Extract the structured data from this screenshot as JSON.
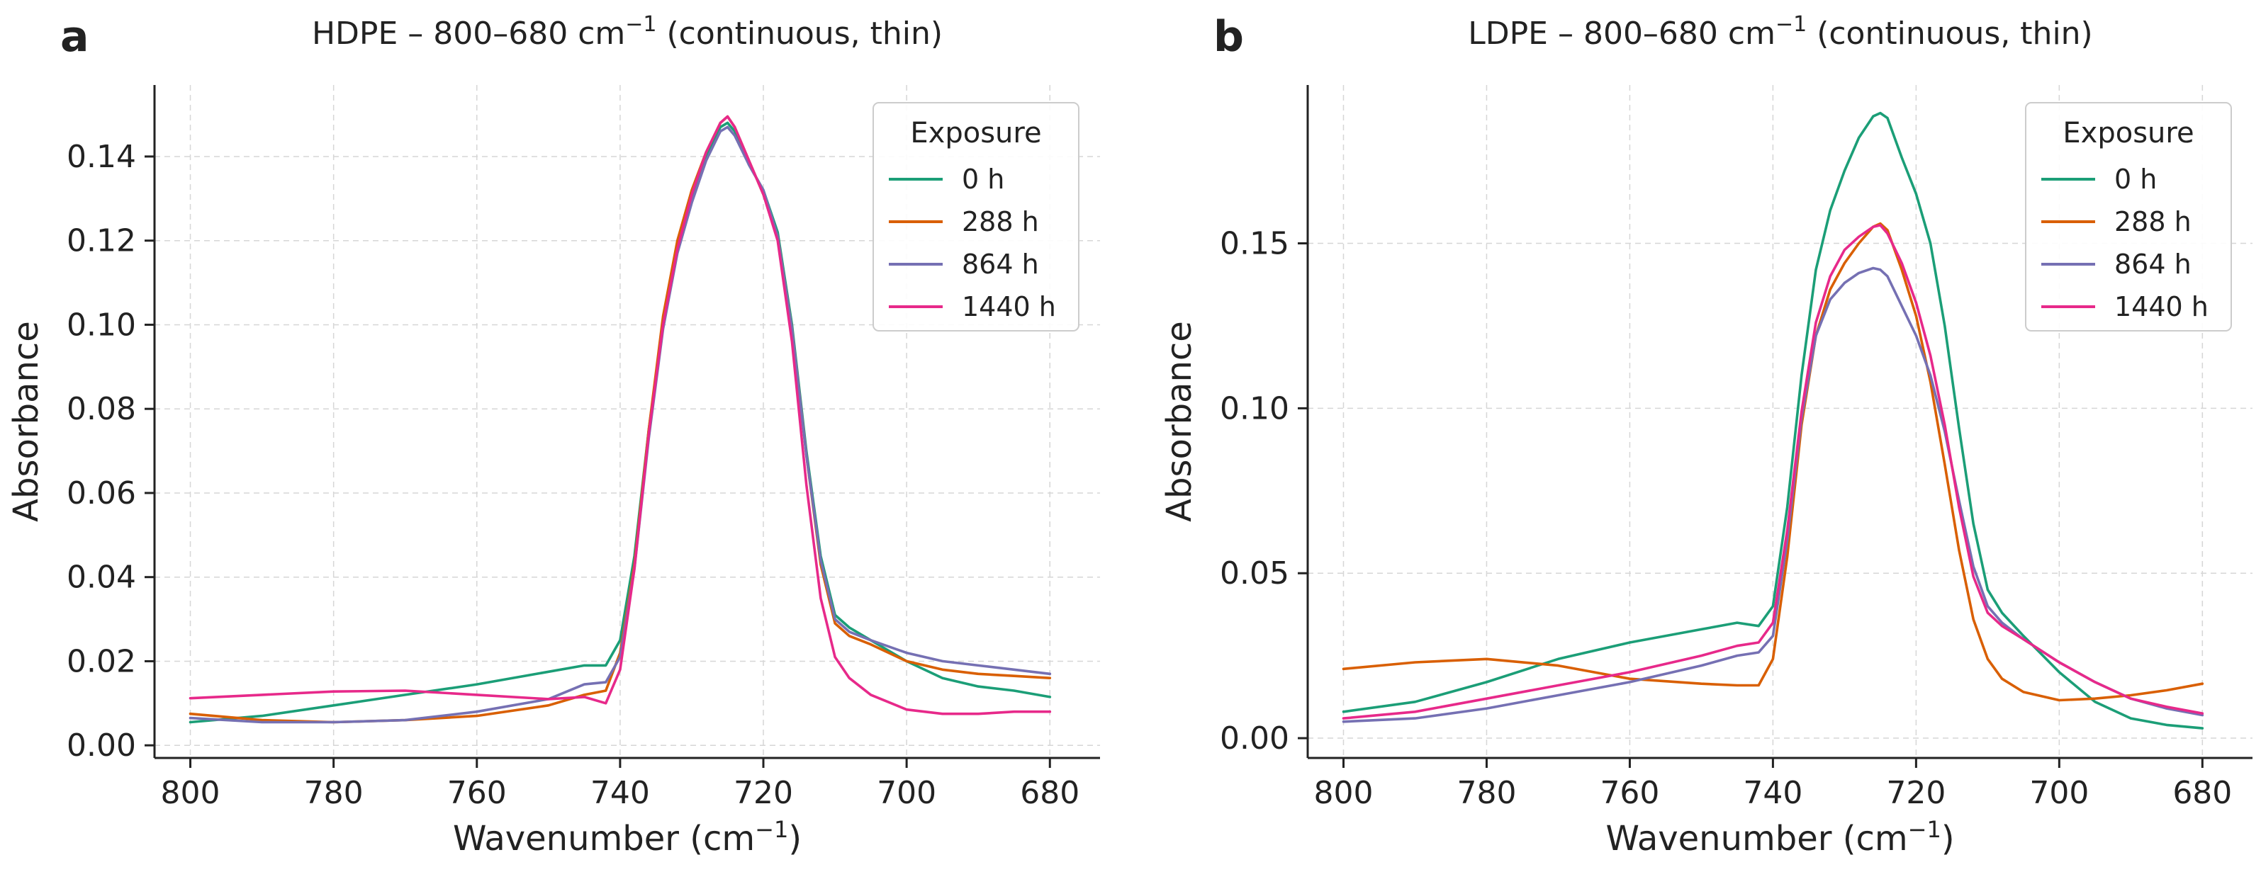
{
  "figure": {
    "panels": [
      {
        "letter": "a"
      },
      {
        "letter": "b"
      }
    ],
    "colors": {
      "0 h": "#1b9e77",
      "288 h": "#d95f02",
      "864 h": "#7570b3",
      "1440 h": "#e7298a"
    }
  },
  "chart_data": [
    {
      "type": "line",
      "panel": "a",
      "title_main": "HDPE – 800–680 cm",
      "title_sup": "−1",
      "title_tail": " (continuous, thin)",
      "xlabel_main": "Wavenumber (cm",
      "xlabel_sup": "−1",
      "xlabel_tail": ")",
      "ylabel": "Absorbance",
      "xlim": [
        805,
        673
      ],
      "ylim": [
        -0.003,
        0.157
      ],
      "xticks": [
        800,
        780,
        760,
        740,
        720,
        700,
        680
      ],
      "xtick_labels": [
        "800",
        "780",
        "760",
        "740",
        "720",
        "700",
        "680"
      ],
      "yticks": [
        0.0,
        0.02,
        0.04,
        0.06,
        0.08,
        0.1,
        0.12,
        0.14
      ],
      "ytick_labels": [
        "0.00",
        "0.02",
        "0.04",
        "0.06",
        "0.08",
        "0.10",
        "0.12",
        "0.14"
      ],
      "grid": true,
      "legend_title": "Exposure",
      "legend_position": "top-right",
      "series": [
        {
          "name": "0 h",
          "x": [
            800,
            790,
            780,
            770,
            760,
            750,
            745,
            742,
            740,
            738,
            736,
            734,
            732,
            730,
            728,
            726,
            725,
            724,
            722,
            720,
            718,
            716,
            714,
            712,
            710,
            708,
            705,
            700,
            695,
            690,
            685,
            680
          ],
          "y": [
            0.0055,
            0.007,
            0.0095,
            0.012,
            0.0145,
            0.0175,
            0.019,
            0.019,
            0.025,
            0.045,
            0.075,
            0.1,
            0.118,
            0.13,
            0.14,
            0.147,
            0.148,
            0.146,
            0.138,
            0.132,
            0.122,
            0.1,
            0.07,
            0.045,
            0.031,
            0.028,
            0.025,
            0.02,
            0.016,
            0.014,
            0.013,
            0.0115
          ]
        },
        {
          "name": "288 h",
          "x": [
            800,
            790,
            780,
            770,
            760,
            750,
            745,
            742,
            740,
            738,
            736,
            734,
            732,
            730,
            728,
            726,
            725,
            724,
            722,
            720,
            718,
            716,
            714,
            712,
            710,
            708,
            705,
            700,
            695,
            690,
            685,
            680
          ],
          "y": [
            0.0075,
            0.006,
            0.0055,
            0.006,
            0.007,
            0.0095,
            0.012,
            0.013,
            0.022,
            0.043,
            0.075,
            0.102,
            0.12,
            0.132,
            0.141,
            0.148,
            0.1495,
            0.147,
            0.139,
            0.131,
            0.121,
            0.099,
            0.069,
            0.043,
            0.029,
            0.026,
            0.024,
            0.02,
            0.018,
            0.017,
            0.0165,
            0.016
          ]
        },
        {
          "name": "864 h",
          "x": [
            800,
            790,
            780,
            770,
            760,
            750,
            745,
            742,
            740,
            738,
            736,
            734,
            732,
            730,
            728,
            726,
            725,
            724,
            722,
            720,
            718,
            716,
            714,
            712,
            710,
            708,
            705,
            700,
            695,
            690,
            685,
            680
          ],
          "y": [
            0.0065,
            0.0055,
            0.0055,
            0.006,
            0.008,
            0.011,
            0.0145,
            0.015,
            0.021,
            0.042,
            0.073,
            0.099,
            0.117,
            0.129,
            0.139,
            0.146,
            0.147,
            0.145,
            0.138,
            0.132,
            0.121,
            0.099,
            0.069,
            0.044,
            0.03,
            0.027,
            0.025,
            0.022,
            0.02,
            0.019,
            0.018,
            0.017
          ]
        },
        {
          "name": "1440 h",
          "x": [
            800,
            790,
            780,
            770,
            760,
            750,
            745,
            742,
            740,
            738,
            736,
            734,
            732,
            730,
            728,
            726,
            725,
            724,
            722,
            720,
            718,
            716,
            714,
            712,
            710,
            708,
            705,
            700,
            695,
            690,
            685,
            680
          ],
          "y": [
            0.0112,
            0.012,
            0.0128,
            0.013,
            0.012,
            0.011,
            0.0115,
            0.01,
            0.018,
            0.042,
            0.074,
            0.1,
            0.118,
            0.131,
            0.141,
            0.148,
            0.1495,
            0.147,
            0.139,
            0.131,
            0.12,
            0.096,
            0.062,
            0.035,
            0.021,
            0.016,
            0.012,
            0.0085,
            0.0075,
            0.0075,
            0.008,
            0.008
          ]
        }
      ]
    },
    {
      "type": "line",
      "panel": "b",
      "title_main": "LDPE – 800–680 cm",
      "title_sup": "−1",
      "title_tail": " (continuous, thin)",
      "xlabel_main": "Wavenumber (cm",
      "xlabel_sup": "−1",
      "xlabel_tail": ")",
      "ylabel": "Absorbance",
      "xlim": [
        805,
        673
      ],
      "ylim": [
        -0.006,
        0.198
      ],
      "xticks": [
        800,
        780,
        760,
        740,
        720,
        700,
        680
      ],
      "xtick_labels": [
        "800",
        "780",
        "760",
        "740",
        "720",
        "700",
        "680"
      ],
      "yticks": [
        0.0,
        0.05,
        0.1,
        0.15
      ],
      "ytick_labels": [
        "0.00",
        "0.05",
        "0.10",
        "0.15"
      ],
      "grid": true,
      "legend_title": "Exposure",
      "legend_position": "top-right",
      "series": [
        {
          "name": "0 h",
          "x": [
            800,
            790,
            780,
            770,
            760,
            750,
            745,
            742,
            740,
            738,
            736,
            734,
            732,
            730,
            728,
            726,
            725,
            724,
            722,
            720,
            718,
            716,
            714,
            712,
            710,
            708,
            705,
            700,
            695,
            690,
            685,
            680
          ],
          "y": [
            0.008,
            0.011,
            0.017,
            0.024,
            0.029,
            0.033,
            0.035,
            0.034,
            0.04,
            0.07,
            0.11,
            0.142,
            0.16,
            0.172,
            0.182,
            0.1885,
            0.1895,
            0.188,
            0.176,
            0.165,
            0.15,
            0.125,
            0.094,
            0.065,
            0.045,
            0.038,
            0.031,
            0.02,
            0.011,
            0.006,
            0.004,
            0.003
          ]
        },
        {
          "name": "288 h",
          "x": [
            800,
            790,
            780,
            770,
            760,
            750,
            745,
            742,
            740,
            738,
            736,
            734,
            732,
            730,
            728,
            726,
            725,
            724,
            722,
            720,
            718,
            716,
            714,
            712,
            710,
            708,
            705,
            700,
            695,
            690,
            685,
            680
          ],
          "y": [
            0.021,
            0.023,
            0.024,
            0.022,
            0.018,
            0.0165,
            0.016,
            0.016,
            0.024,
            0.055,
            0.095,
            0.122,
            0.136,
            0.144,
            0.15,
            0.155,
            0.156,
            0.154,
            0.142,
            0.128,
            0.108,
            0.083,
            0.057,
            0.036,
            0.024,
            0.018,
            0.014,
            0.0115,
            0.012,
            0.013,
            0.0145,
            0.0165
          ]
        },
        {
          "name": "864 h",
          "x": [
            800,
            790,
            780,
            770,
            760,
            750,
            745,
            742,
            740,
            738,
            736,
            734,
            732,
            730,
            728,
            726,
            725,
            724,
            722,
            720,
            718,
            716,
            714,
            712,
            710,
            708,
            705,
            700,
            695,
            690,
            685,
            680
          ],
          "y": [
            0.005,
            0.006,
            0.009,
            0.013,
            0.017,
            0.022,
            0.025,
            0.026,
            0.031,
            0.06,
            0.097,
            0.122,
            0.133,
            0.138,
            0.141,
            0.1425,
            0.142,
            0.14,
            0.131,
            0.122,
            0.11,
            0.093,
            0.072,
            0.052,
            0.04,
            0.035,
            0.03,
            0.023,
            0.017,
            0.012,
            0.009,
            0.007
          ]
        },
        {
          "name": "1440 h",
          "x": [
            800,
            790,
            780,
            770,
            760,
            750,
            745,
            742,
            740,
            738,
            736,
            734,
            732,
            730,
            728,
            726,
            725,
            724,
            722,
            720,
            718,
            716,
            714,
            712,
            710,
            708,
            705,
            700,
            695,
            690,
            685,
            680
          ],
          "y": [
            0.006,
            0.008,
            0.012,
            0.016,
            0.02,
            0.025,
            0.028,
            0.029,
            0.035,
            0.063,
            0.099,
            0.126,
            0.14,
            0.148,
            0.152,
            0.155,
            0.1555,
            0.153,
            0.144,
            0.132,
            0.116,
            0.095,
            0.07,
            0.049,
            0.038,
            0.034,
            0.03,
            0.023,
            0.017,
            0.012,
            0.0095,
            0.0075
          ]
        }
      ]
    }
  ]
}
